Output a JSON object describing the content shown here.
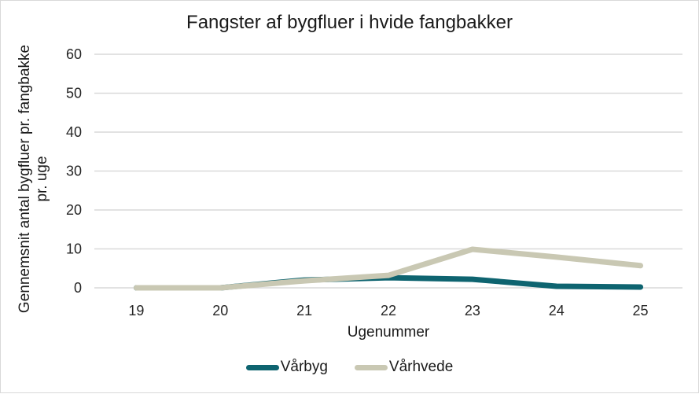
{
  "chart_data": {
    "type": "line",
    "title": "Fangster af bygfluer i hvide fangbakker",
    "xlabel": "Ugenummer",
    "ylabel": "Gennemsnit antal bygfluer pr. fangbakke pr. uge",
    "ylabel_lines": [
      "Gennemsnit antal bygfluer pr. fangbakke",
      "pr. uge"
    ],
    "categories": [
      "19",
      "20",
      "21",
      "22",
      "23",
      "24",
      "25"
    ],
    "yticks": [
      0,
      10,
      20,
      30,
      40,
      50,
      60
    ],
    "ylim": [
      0,
      60
    ],
    "grid": true,
    "legend_position": "bottom",
    "series": [
      {
        "name": "Vårbyg",
        "color": "#0e6470",
        "values": [
          0,
          0,
          2.0,
          2.6,
          2.2,
          0.4,
          0.2
        ]
      },
      {
        "name": "Vårhvede",
        "color": "#c9c8b3",
        "values": [
          0,
          0,
          1.8,
          3.2,
          9.9,
          7.9,
          5.7
        ]
      }
    ]
  }
}
